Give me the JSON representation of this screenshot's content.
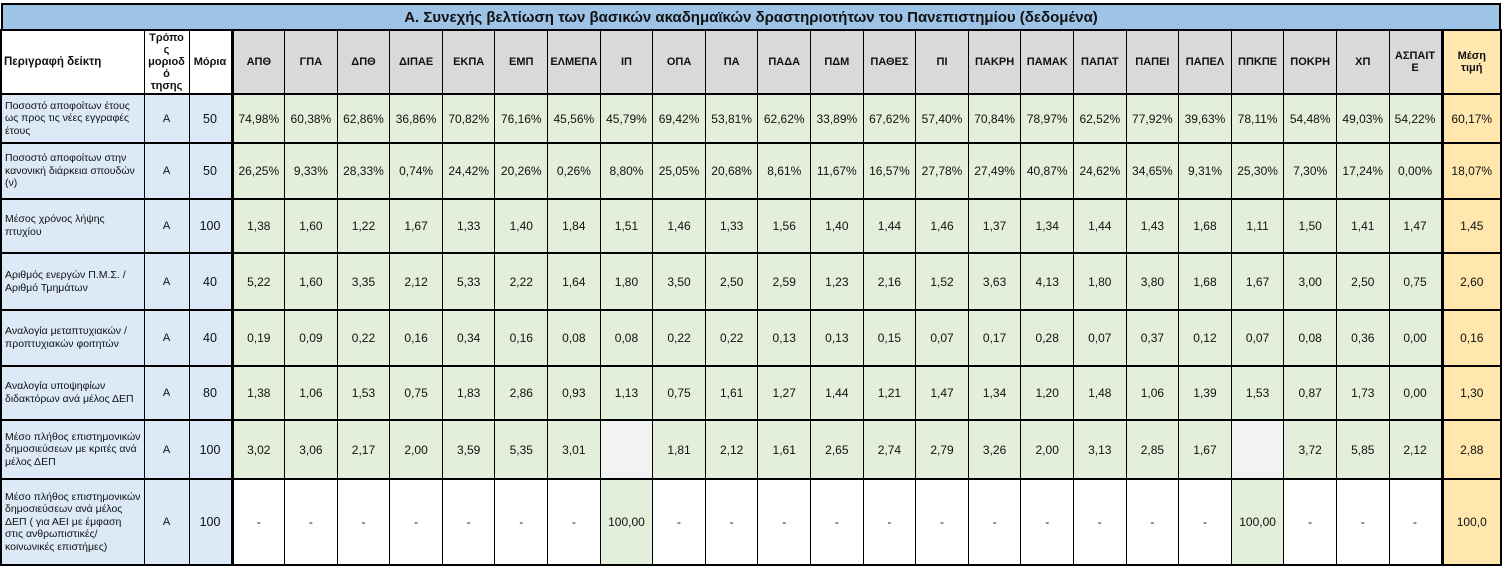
{
  "title": "Α. Συνεχής βελτίωση των βασικών ακαδημαϊκών δραστηριοτήτων του Πανεπιστημίου (δεδομένα)",
  "colors": {
    "title_bg": "#9dc3e6",
    "header_bg": "#d9d9d9",
    "left_bg": "#dce9f7",
    "data_bg": "#e3efda",
    "mean_bg": "#ffe7ad",
    "empty_bg": "#f2f2f2",
    "plain_bg": "#ffffff",
    "border": "#000000",
    "text": "#111111"
  },
  "table": {
    "left_headers": [
      "Περιγραφή δείκτη",
      "Τρόπος μοριοδό τησης",
      "Μόρια"
    ],
    "university_columns": [
      "ΑΠΘ",
      "ΓΠΑ",
      "ΔΠΘ",
      "ΔΙΠΑΕ",
      "ΕΚΠΑ",
      "ΕΜΠ",
      "ΕΛΜΕΠΑ",
      "ΙΠ",
      "ΟΠΑ",
      "ΠΑ",
      "ΠΑΔΑ",
      "ΠΔΜ",
      "ΠΑΘΕΣ",
      "ΠΙ",
      "ΠΑΚΡΗ",
      "ΠΑΜΑΚ",
      "ΠΑΠΑΤ",
      "ΠΑΠΕΙ",
      "ΠΑΠΕΛ",
      "ΠΠΚΠΕ",
      "ΠΟΚΡΗ",
      "ΧΠ",
      "ΑΣΠΑΙΤΕ"
    ],
    "mean_header": "Μέση τιμή",
    "rows": [
      {
        "indicator": "Ποσοστό αποφοίτων έτους ως προς τις νέες εγγραφές έτους",
        "method": "Α",
        "points": "50",
        "values": [
          "74,98%",
          "60,38%",
          "62,86%",
          "36,86%",
          "70,82%",
          "76,16%",
          "45,56%",
          "45,79%",
          "69,42%",
          "53,81%",
          "62,62%",
          "33,89%",
          "67,62%",
          "57,40%",
          "70,84%",
          "78,97%",
          "62,52%",
          "77,92%",
          "39,63%",
          "78,11%",
          "54,48%",
          "49,03%",
          "54,22%"
        ],
        "mean": "60,17%"
      },
      {
        "indicator": "Ποσοστό αποφοίτων στην κανονική διάρκεια σπουδών (ν)",
        "method": "Α",
        "points": "50",
        "values": [
          "26,25%",
          "9,33%",
          "28,33%",
          "0,74%",
          "24,42%",
          "20,26%",
          "0,26%",
          "8,80%",
          "25,05%",
          "20,68%",
          "8,61%",
          "11,67%",
          "16,57%",
          "27,78%",
          "27,49%",
          "40,87%",
          "24,62%",
          "34,65%",
          "9,31%",
          "25,30%",
          "7,30%",
          "17,24%",
          "0,00%"
        ],
        "mean": "18,07%"
      },
      {
        "indicator": "Μέσος χρόνος λήψης πτυχίου",
        "method": "Α",
        "points": "100",
        "values": [
          "1,38",
          "1,60",
          "1,22",
          "1,67",
          "1,33",
          "1,40",
          "1,84",
          "1,51",
          "1,46",
          "1,33",
          "1,56",
          "1,40",
          "1,44",
          "1,46",
          "1,37",
          "1,34",
          "1,44",
          "1,43",
          "1,68",
          "1,11",
          "1,50",
          "1,41",
          "1,47"
        ],
        "mean": "1,45"
      },
      {
        "indicator": "Αριθμός ενεργών Π.Μ.Σ. / Αριθμό Τμημάτων",
        "method": "Α",
        "points": "40",
        "values": [
          "5,22",
          "1,60",
          "3,35",
          "2,12",
          "5,33",
          "2,22",
          "1,64",
          "1,80",
          "3,50",
          "2,50",
          "2,59",
          "1,23",
          "2,16",
          "1,52",
          "3,63",
          "4,13",
          "1,80",
          "3,80",
          "1,68",
          "1,67",
          "3,00",
          "2,50",
          "0,75"
        ],
        "mean": "2,60"
      },
      {
        "indicator": "Αναλογία μεταπτυχιακών / προπτυχιακών φοιτητών",
        "method": "Α",
        "points": "40",
        "values": [
          "0,19",
          "0,09",
          "0,22",
          "0,16",
          "0,34",
          "0,16",
          "0,08",
          "0,08",
          "0,22",
          "0,22",
          "0,13",
          "0,13",
          "0,15",
          "0,07",
          "0,17",
          "0,28",
          "0,07",
          "0,37",
          "0,12",
          "0,07",
          "0,08",
          "0,36",
          "0,00"
        ],
        "mean": "0,16"
      },
      {
        "indicator": "Αναλογία υποψηφίων διδακτόρων ανά μέλος ΔΕΠ",
        "method": "Α",
        "points": "80",
        "values": [
          "1,38",
          "1,06",
          "1,53",
          "0,75",
          "1,83",
          "2,86",
          "0,93",
          "1,13",
          "0,75",
          "1,61",
          "1,27",
          "1,44",
          "1,21",
          "1,47",
          "1,34",
          "1,20",
          "1,48",
          "1,06",
          "1,39",
          "1,53",
          "0,87",
          "1,73",
          "0,00"
        ],
        "mean": "1,30"
      },
      {
        "indicator": "Μέσο πλήθος επιστημονικών δημοσιεύσεων με κριτές ανά μέλος ΔΕΠ",
        "method": "Α",
        "points": "100",
        "values": [
          "3,02",
          "3,06",
          "2,17",
          "2,00",
          "3,59",
          "5,35",
          "3,01",
          "",
          "1,81",
          "2,12",
          "1,61",
          "2,65",
          "2,74",
          "2,79",
          "3,26",
          "2,00",
          "3,13",
          "2,85",
          "1,67",
          "",
          "3,72",
          "5,85",
          "2,12"
        ],
        "mean": "2,88"
      },
      {
        "indicator": "Μέσο πλήθος επιστημονικών δημοσιεύσεων ανά μέλος ΔΕΠ ( για ΑΕΙ με έμφαση στις ανθρωπιστικές/κοινωνικές επιστήμες)",
        "method": "Α",
        "points": "100",
        "plain_background": true,
        "values": [
          "-",
          "-",
          "-",
          "-",
          "-",
          "-",
          "-",
          "100,00",
          "-",
          "-",
          "-",
          "-",
          "-",
          "-",
          "-",
          "-",
          "-",
          "-",
          "-",
          "100,00",
          "-",
          "-",
          "-"
        ],
        "mean": "100,0"
      }
    ]
  }
}
